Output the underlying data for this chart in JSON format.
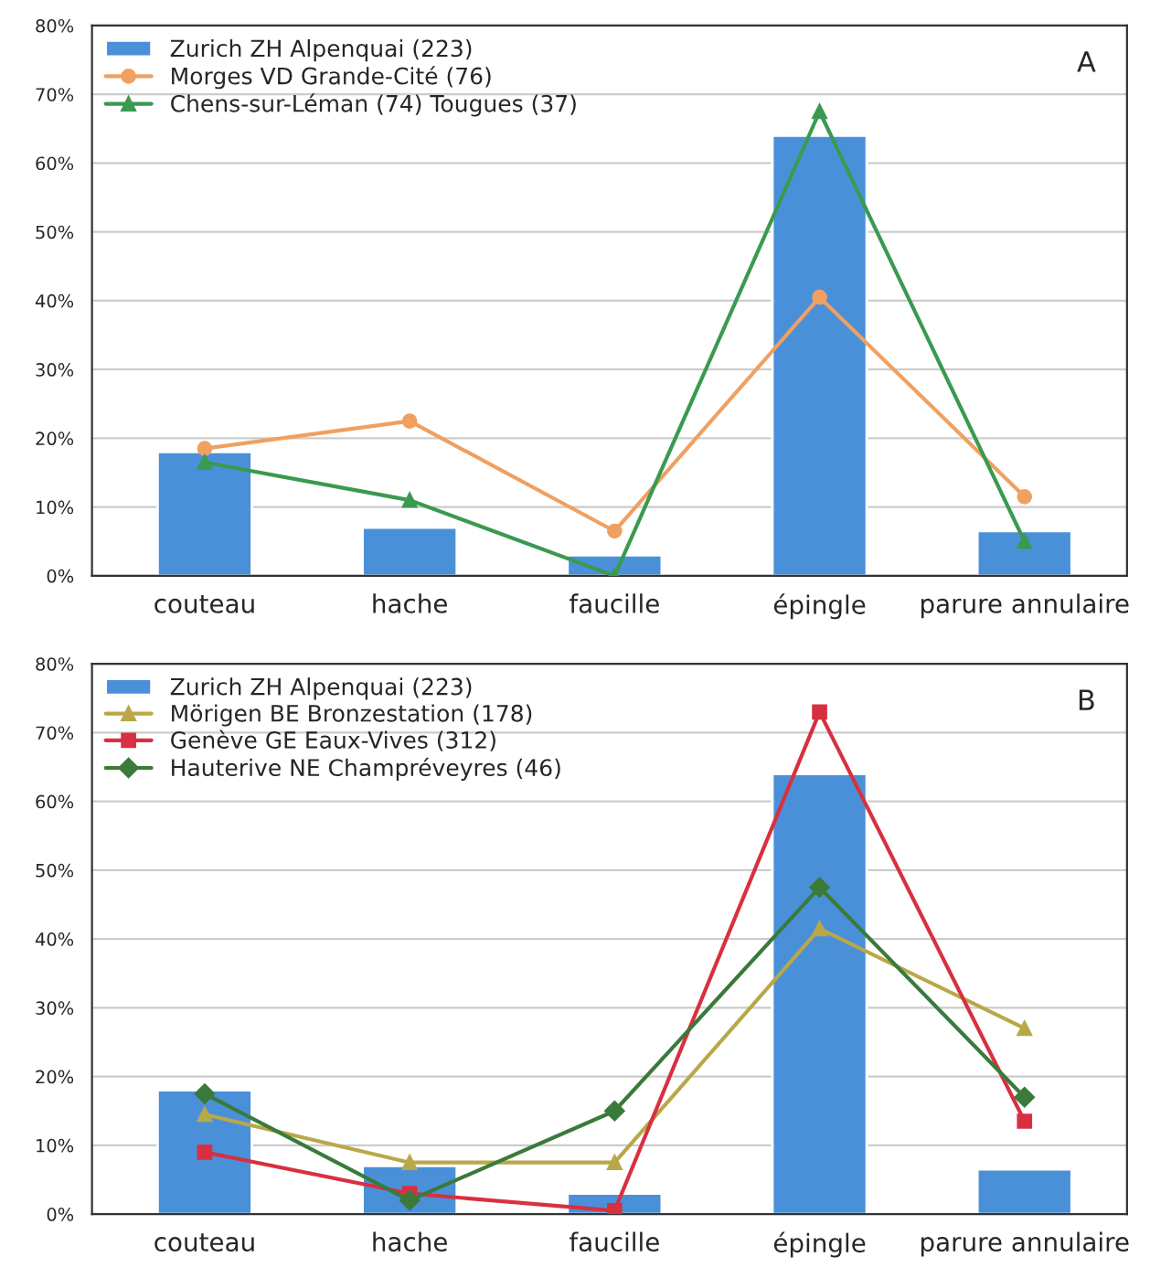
{
  "chart_data": [
    {
      "type": "bar",
      "categories": [
        "couteau",
        "hache",
        "faucille",
        "épingle",
        "parure annulaire"
      ],
      "annotations": [
        "A"
      ],
      "ylim": [
        0,
        80
      ],
      "yticks": [
        {
          "value": 0,
          "label": "0%"
        },
        {
          "value": 10,
          "label": "10%"
        },
        {
          "value": 20,
          "label": "20%"
        },
        {
          "value": 30,
          "label": "30%"
        },
        {
          "value": 40,
          "label": "40%"
        },
        {
          "value": 50,
          "label": "50%"
        },
        {
          "value": 60,
          "label": "60%"
        },
        {
          "value": 70,
          "label": "70%"
        },
        {
          "value": 80,
          "label": "80%"
        }
      ],
      "grid": "y",
      "legend": "top left",
      "series": [
        {
          "name": "Zurich ZH Alpenquai (223)",
          "color": "#4a90d9",
          "values": [
            18,
            7,
            3,
            64,
            6.5
          ]
        },
        {
          "name": "Morges VD Grande-Cité (76)",
          "type": "line",
          "color": "#f0a060",
          "marker": "circle",
          "values": [
            18.5,
            22.5,
            6.5,
            40.5,
            11.5
          ]
        },
        {
          "name": "Chens-sur-Léman (74) Tougues (37)",
          "type": "line",
          "color": "#3a9a50",
          "marker": "triangle",
          "values": [
            16.5,
            11,
            0,
            67.5,
            5
          ]
        }
      ]
    },
    {
      "type": "bar",
      "categories": [
        "couteau",
        "hache",
        "faucille",
        "épingle",
        "parure annulaire"
      ],
      "annotations": [
        "B"
      ],
      "ylim": [
        0,
        80
      ],
      "yticks": [
        {
          "value": 0,
          "label": "0%"
        },
        {
          "value": 10,
          "label": "10%"
        },
        {
          "value": 20,
          "label": "20%"
        },
        {
          "value": 30,
          "label": "30%"
        },
        {
          "value": 40,
          "label": "40%"
        },
        {
          "value": 50,
          "label": "50%"
        },
        {
          "value": 60,
          "label": "60%"
        },
        {
          "value": 70,
          "label": "70%"
        },
        {
          "value": 80,
          "label": "80%"
        }
      ],
      "grid": "y",
      "legend": "top left",
      "series": [
        {
          "name": "Zurich ZH Alpenquai (223)",
          "color": "#4a90d9",
          "values": [
            18,
            7,
            3,
            64,
            6.5
          ]
        },
        {
          "name": "Mörigen BE Bronzestation (178)",
          "type": "line",
          "color": "#b8a848",
          "marker": "triangle",
          "values": [
            14.5,
            7.5,
            7.5,
            41.5,
            27
          ]
        },
        {
          "name": "Genève GE Eaux-Vives (312)",
          "type": "line",
          "color": "#d83040",
          "marker": "square",
          "values": [
            9,
            3,
            0.5,
            73,
            13.5
          ]
        },
        {
          "name": "Hauterive NE Champréveyres (46)",
          "type": "line",
          "color": "#3a7a3a",
          "marker": "diamond",
          "values": [
            17.5,
            2,
            15,
            47.5,
            17
          ]
        }
      ]
    }
  ]
}
